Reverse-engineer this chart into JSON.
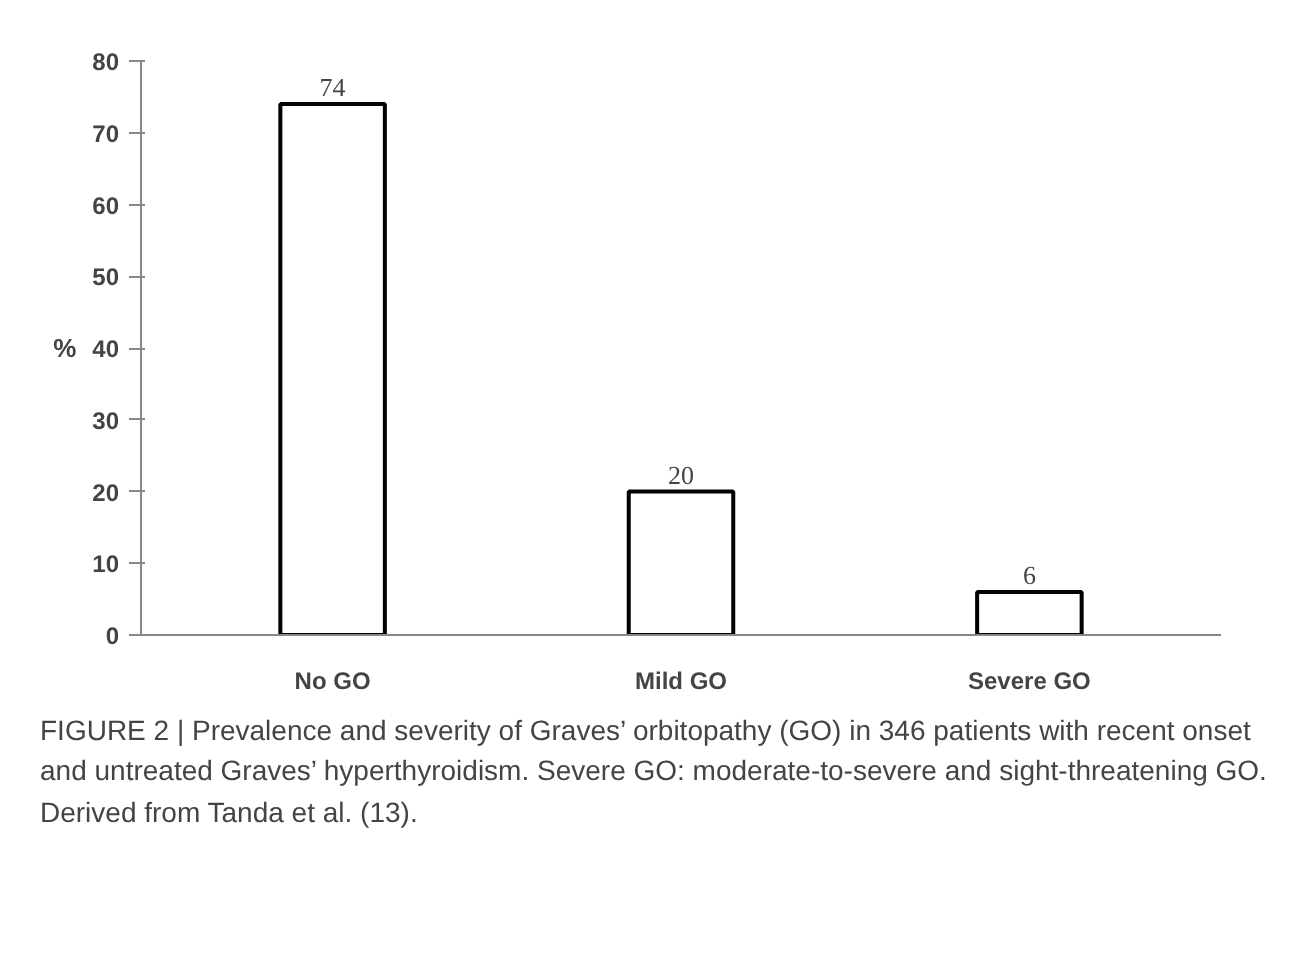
{
  "chart_data": {
    "type": "bar",
    "ylabel": "%",
    "categories": [
      "No GO",
      "Mild GO",
      "Severe GO"
    ],
    "values": [
      74,
      20,
      6
    ],
    "color": "#ffffff",
    "data_labels": true,
    "ylim": [
      0,
      80
    ],
    "yticks": [
      0,
      10,
      20,
      30,
      40,
      50,
      60,
      70,
      80
    ],
    "grid": false,
    "annotations": [
      "FIGURE 2 | Prevalence and severity of Graves’ orbitopathy (GO) in 346 patients with recent onset and untreated Graves’ hyperthyroidism. Severe GO: moderate-to-severe and sight-threatening GO. Derived from Tanda et al. (13)."
    ]
  }
}
